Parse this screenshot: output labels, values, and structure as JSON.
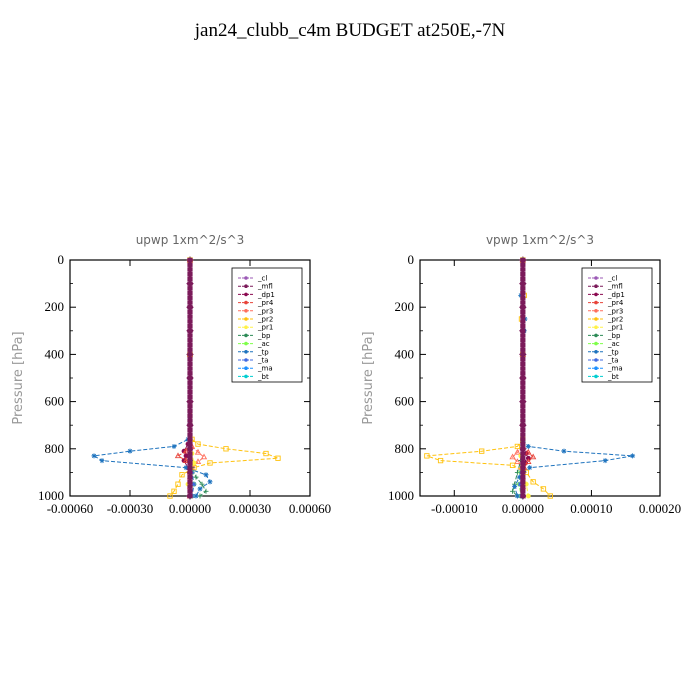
{
  "page": {
    "title": "jan24_clubb_c4m  BUDGET at250E,-7N"
  },
  "chart_data": [
    {
      "type": "line",
      "title": "upwp   1xm^2/s^3",
      "xlabel": "",
      "ylabel": "Pressure [hPa]",
      "xlim": [
        -0.0006,
        0.0006
      ],
      "ylim": [
        1000,
        0
      ],
      "xticks": [
        "-0.00060",
        "-0.00030",
        "0.00000",
        "0.00030",
        "0.00060"
      ],
      "xtick_values": [
        -0.0006,
        -0.0003,
        0,
        0.0003,
        0.0006
      ],
      "yticks": [
        "0",
        "200",
        "400",
        "600",
        "800",
        "1000"
      ],
      "ytick_values": [
        0,
        200,
        400,
        600,
        800,
        1000
      ],
      "legend": [
        "_cl",
        "_mfl",
        "_dp1",
        "_pr4",
        "_pr3",
        "_pr2",
        "_pr1",
        "_bp",
        "_ac",
        "_tp",
        "_ta",
        "_ma",
        "_bt"
      ],
      "legend_position": "top-right",
      "series": [
        {
          "name": "_cl",
          "color": "#9b59b6",
          "p": [
            0,
            200,
            400,
            600,
            780,
            820,
            850,
            900,
            950,
            1000
          ],
          "x": [
            0,
            0,
            0,
            0,
            0,
            0,
            0,
            0,
            0,
            0
          ]
        },
        {
          "name": "_mfl",
          "color": "#7b1a5a",
          "p": [
            0,
            100,
            200,
            300,
            400,
            500,
            600,
            700,
            800,
            850,
            900,
            950,
            1000
          ],
          "x": [
            0,
            0,
            0,
            0,
            0,
            0,
            0,
            0,
            0,
            0,
            0,
            0,
            0
          ]
        },
        {
          "name": "_dp1",
          "color": "#8b0a50",
          "p": [
            0,
            400,
            780,
            810,
            830,
            850,
            880,
            920,
            960,
            1000
          ],
          "x": [
            0,
            0,
            -1e-05,
            -3e-05,
            -2e-05,
            -3e-05,
            -1e-05,
            0,
            0,
            0
          ]
        },
        {
          "name": "_pr4",
          "color": "#e8443a",
          "p": [
            0,
            400,
            790,
            810,
            830,
            850,
            870,
            900,
            950,
            1000
          ],
          "x": [
            0,
            0,
            0,
            -2e-05,
            -6e-05,
            -2e-05,
            1e-05,
            0,
            0,
            0
          ]
        },
        {
          "name": "_pr3",
          "color": "#ff6f5e",
          "p": [
            0,
            400,
            790,
            815,
            835,
            855,
            880,
            920,
            960,
            1000
          ],
          "x": [
            0,
            0,
            1e-05,
            4e-05,
            7e-05,
            4e-05,
            1e-05,
            0,
            0,
            0
          ]
        },
        {
          "name": "_pr2",
          "color": "#ffc20e",
          "p": [
            0,
            400,
            760,
            780,
            800,
            820,
            840,
            860,
            880,
            910,
            950,
            980,
            1000
          ],
          "x": [
            0,
            0,
            1e-05,
            4e-05,
            0.00018,
            0.00038,
            0.00044,
            0.0001,
            2e-05,
            -4e-05,
            -6e-05,
            -8e-05,
            -0.0001
          ]
        },
        {
          "name": "_pr1",
          "color": "#fff24a",
          "p": [
            0,
            400,
            780,
            820,
            860,
            900,
            950,
            1000
          ],
          "x": [
            0,
            0,
            0,
            1e-05,
            2e-05,
            0,
            -1e-05,
            0
          ]
        },
        {
          "name": "_bp",
          "color": "#2e8b57",
          "p": [
            0,
            400,
            880,
            920,
            950,
            980,
            1000
          ],
          "x": [
            0,
            0,
            1e-05,
            3e-05,
            6e-05,
            8e-05,
            5e-05
          ]
        },
        {
          "name": "_ac",
          "color": "#7fff4a",
          "p": [
            0,
            400,
            900,
            950,
            1000
          ],
          "x": [
            0,
            0,
            1e-05,
            2e-05,
            1e-05
          ]
        },
        {
          "name": "_tp",
          "color": "#1e73be",
          "p": [
            0,
            400,
            760,
            790,
            810,
            830,
            850,
            880,
            910,
            940,
            970,
            1000
          ],
          "x": [
            0,
            0,
            -1e-05,
            -8e-05,
            -0.0003,
            -0.00048,
            -0.00044,
            -2e-05,
            8e-05,
            0.0001,
            5e-05,
            3e-05
          ]
        },
        {
          "name": "_ta",
          "color": "#4169e1",
          "p": [
            0,
            400,
            900,
            950,
            1000
          ],
          "x": [
            0,
            0,
            1e-05,
            2e-05,
            1e-05
          ]
        },
        {
          "name": "_ma",
          "color": "#1e90ff",
          "p": [
            0,
            400,
            800,
            900,
            1000
          ],
          "x": [
            0,
            0,
            0,
            0,
            0
          ]
        },
        {
          "name": "_bt",
          "color": "#00ced1",
          "p": [
            0,
            400,
            800,
            900,
            1000
          ],
          "x": [
            0,
            0,
            0,
            0,
            0
          ]
        }
      ]
    },
    {
      "type": "line",
      "title": "vpwp   1xm^2/s^3",
      "xlabel": "",
      "ylabel": "Pressure [hPa]",
      "xlim": [
        -0.00015,
        0.0002
      ],
      "ylim": [
        1000,
        0
      ],
      "xticks": [
        "-0.00010",
        "0.00000",
        "0.00010",
        "0.00020"
      ],
      "xtick_values": [
        -0.0001,
        0,
        0.0001,
        0.0002
      ],
      "yticks": [
        "0",
        "200",
        "400",
        "600",
        "800",
        "1000"
      ],
      "ytick_values": [
        0,
        200,
        400,
        600,
        800,
        1000
      ],
      "legend": [
        "_cl",
        "_mfl",
        "_dp1",
        "_pr4",
        "_pr3",
        "_pr2",
        "_pr1",
        "_bp",
        "_ac",
        "_tp",
        "_ta",
        "_ma",
        "_bt"
      ],
      "legend_position": "top-right",
      "series": [
        {
          "name": "_cl",
          "color": "#9b59b6",
          "p": [
            0,
            200,
            400,
            600,
            800,
            900,
            1000
          ],
          "x": [
            0,
            0,
            0,
            0,
            0,
            0,
            0
          ]
        },
        {
          "name": "_mfl",
          "color": "#7b1a5a",
          "p": [
            0,
            100,
            200,
            300,
            400,
            500,
            600,
            700,
            800,
            850,
            900,
            950,
            1000
          ],
          "x": [
            0,
            0,
            0,
            0,
            0,
            0,
            0,
            0,
            0,
            0,
            0,
            0,
            0
          ]
        },
        {
          "name": "_dp1",
          "color": "#8b0a50",
          "p": [
            0,
            400,
            790,
            820,
            840,
            860,
            890,
            930,
            970,
            1000
          ],
          "x": [
            0,
            0,
            0,
            5e-06,
            8e-06,
            4e-06,
            0,
            0,
            0,
            0
          ]
        },
        {
          "name": "_pr4",
          "color": "#e8443a",
          "p": [
            0,
            400,
            790,
            815,
            835,
            855,
            880,
            920,
            960,
            1000
          ],
          "x": [
            0,
            0,
            0,
            8e-06,
            1.5e-05,
            8e-06,
            2e-06,
            0,
            0,
            0
          ]
        },
        {
          "name": "_pr3",
          "color": "#ff6f5e",
          "p": [
            0,
            400,
            790,
            815,
            835,
            855,
            880,
            920,
            960,
            1000
          ],
          "x": [
            0,
            0,
            0,
            -8e-06,
            -1.5e-05,
            -8e-06,
            -2e-06,
            0,
            0,
            0
          ]
        },
        {
          "name": "_pr2",
          "color": "#ffc20e",
          "p": [
            0,
            150,
            250,
            400,
            760,
            790,
            810,
            830,
            850,
            870,
            900,
            940,
            970,
            1000
          ],
          "x": [
            0,
            2e-06,
            -2e-06,
            0,
            0,
            -8e-06,
            -6e-05,
            -0.00014,
            -0.00012,
            -1.5e-05,
            5e-06,
            1.5e-05,
            3e-05,
            4e-05
          ]
        },
        {
          "name": "_pr1",
          "color": "#fff24a",
          "p": [
            0,
            400,
            780,
            830,
            880,
            950,
            1000
          ],
          "x": [
            0,
            0,
            0,
            -3e-06,
            0,
            5e-06,
            8e-06
          ]
        },
        {
          "name": "_bp",
          "color": "#2e8b57",
          "p": [
            0,
            400,
            850,
            900,
            950,
            980,
            1000
          ],
          "x": [
            0,
            0,
            -3e-06,
            -8e-06,
            -1.2e-05,
            -1.5e-05,
            -8e-06
          ]
        },
        {
          "name": "_ac",
          "color": "#7fff4a",
          "p": [
            0,
            400,
            900,
            950,
            1000
          ],
          "x": [
            0,
            0,
            -3e-06,
            -5e-06,
            -3e-06
          ]
        },
        {
          "name": "_tp",
          "color": "#1e73be",
          "p": [
            0,
            150,
            250,
            300,
            400,
            760,
            790,
            810,
            830,
            850,
            880,
            920,
            960,
            1000
          ],
          "x": [
            0,
            -3e-06,
            3e-06,
            2e-06,
            0,
            0,
            8e-06,
            6e-05,
            0.00016,
            0.00012,
            1e-05,
            -5e-06,
            -1.2e-05,
            -8e-06
          ]
        },
        {
          "name": "_ta",
          "color": "#4169e1",
          "p": [
            0,
            400,
            900,
            950,
            1000
          ],
          "x": [
            0,
            0,
            -2e-06,
            -4e-06,
            -2e-06
          ]
        },
        {
          "name": "_ma",
          "color": "#1e90ff",
          "p": [
            0,
            400,
            800,
            900,
            1000
          ],
          "x": [
            0,
            0,
            0,
            0,
            0
          ]
        },
        {
          "name": "_bt",
          "color": "#00ced1",
          "p": [
            0,
            400,
            800,
            900,
            1000
          ],
          "x": [
            0,
            0,
            0,
            0,
            0
          ]
        }
      ]
    }
  ]
}
